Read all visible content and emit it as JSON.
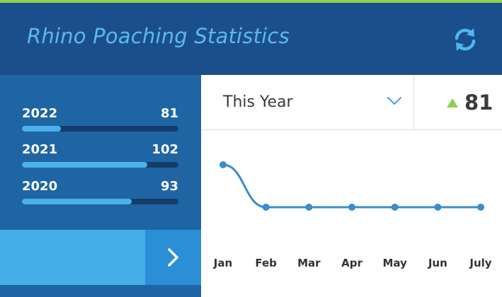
{
  "header": {
    "title": "Rhino Poaching Statistics",
    "refresh_icon": "refresh-icon"
  },
  "colors": {
    "accent_green": "#8fd14f",
    "header_bg": "#1b4f8c",
    "sidebar_bg": "#1f65a3",
    "bar_fill": "#4cb0ea",
    "line": "#3a8ccc"
  },
  "stats": [
    {
      "year": "2022",
      "value": "81",
      "progress": 0.25
    },
    {
      "year": "2021",
      "value": "102",
      "progress": 0.8
    },
    {
      "year": "2020",
      "value": "93",
      "progress": 0.7
    }
  ],
  "more_button": {
    "icon": "chevron-right-icon"
  },
  "range_select": {
    "selected": "This Year",
    "icon": "chevron-down-icon"
  },
  "total": {
    "trend_icon": "triangle-up-icon",
    "value": "81"
  },
  "chart_data": {
    "type": "line",
    "categories": [
      "Jan",
      "Feb",
      "Mar",
      "Apr",
      "May",
      "Jun",
      "July"
    ],
    "series": [
      {
        "values": [
          22,
          12,
          12,
          12,
          12,
          12,
          12
        ]
      }
    ],
    "ylim": [
      0,
      30
    ],
    "grid": false,
    "legend": "none"
  }
}
